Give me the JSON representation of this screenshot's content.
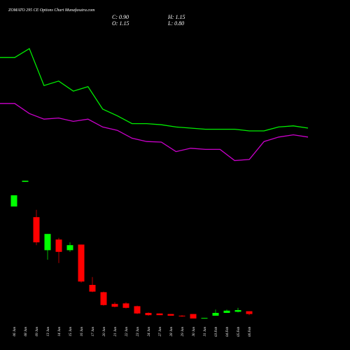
{
  "chart_data": {
    "type": "candlestick",
    "title": "ZOMATO 295 CE Options Chart Munafasutra.com",
    "ohlc_labels": {
      "close": "C: 0.90",
      "high": "H: 1.15",
      "open": "O: 1.15",
      "low": "L: 0.80"
    },
    "categories": [
      "06 Jan",
      "08 Jan",
      "09 Jan",
      "13 Jan",
      "14 Jan",
      "15 Jan",
      "16 Jan",
      "17 Jan",
      "20 Jan",
      "21 Jan",
      "22 Jan",
      "23 Jan",
      "24 Jan",
      "27 Jan",
      "28 Jan",
      "29 Jan",
      "30 Jan",
      "31 Jan",
      "03 Feb",
      "04 Feb",
      "05 Feb",
      "06 Feb"
    ],
    "open": [
      10.5,
      12.7,
      9.55,
      6.6,
      7.55,
      6.6,
      7.1,
      3.5,
      2.85,
      1.8,
      1.85,
      1.6,
      1.0,
      0.95,
      0.9,
      0.75,
      0.9,
      0.5,
      0.75,
      1.0,
      1.1,
      1.15
    ],
    "close": [
      11.5,
      12.8,
      7.3,
      8.05,
      6.45,
      7.05,
      3.8,
      2.9,
      1.7,
      1.55,
      1.45,
      0.95,
      0.8,
      0.8,
      0.75,
      0.7,
      0.5,
      0.55,
      1.0,
      1.2,
      1.25,
      0.9
    ],
    "high": [
      11.5,
      12.8,
      10.2,
      8.05,
      7.7,
      7.3,
      7.1,
      4.2,
      2.9,
      1.95,
      1.95,
      1.65,
      1.05,
      0.95,
      0.9,
      0.8,
      0.9,
      0.55,
      1.3,
      1.3,
      1.45,
      1.15
    ],
    "low": [
      10.5,
      12.7,
      7.05,
      5.75,
      5.45,
      6.45,
      3.7,
      2.85,
      1.65,
      1.5,
      1.4,
      0.9,
      0.75,
      0.8,
      0.75,
      0.65,
      0.5,
      0.5,
      0.75,
      1.0,
      1.05,
      0.8
    ],
    "up_color": "#00ff00",
    "down_color": "#ff0000",
    "lines": [
      {
        "color": "#00ee00",
        "values": [
          23.8,
          23.8,
          24.6,
          21.3,
          21.7,
          20.8,
          21.2,
          19.2,
          18.6,
          17.9,
          17.9,
          17.8,
          17.6,
          17.5,
          17.4,
          17.4,
          17.4,
          17.25,
          17.25,
          17.6,
          17.7,
          17.5
        ]
      },
      {
        "color": "#cc00cc",
        "values": [
          19.7,
          19.7,
          18.8,
          18.3,
          18.4,
          18.1,
          18.3,
          17.6,
          17.3,
          16.6,
          16.3,
          16.25,
          15.4,
          15.7,
          15.6,
          15.6,
          14.6,
          14.7,
          16.3,
          16.7,
          16.9,
          16.7
        ]
      }
    ],
    "ylim": [
      0,
      28
    ]
  }
}
